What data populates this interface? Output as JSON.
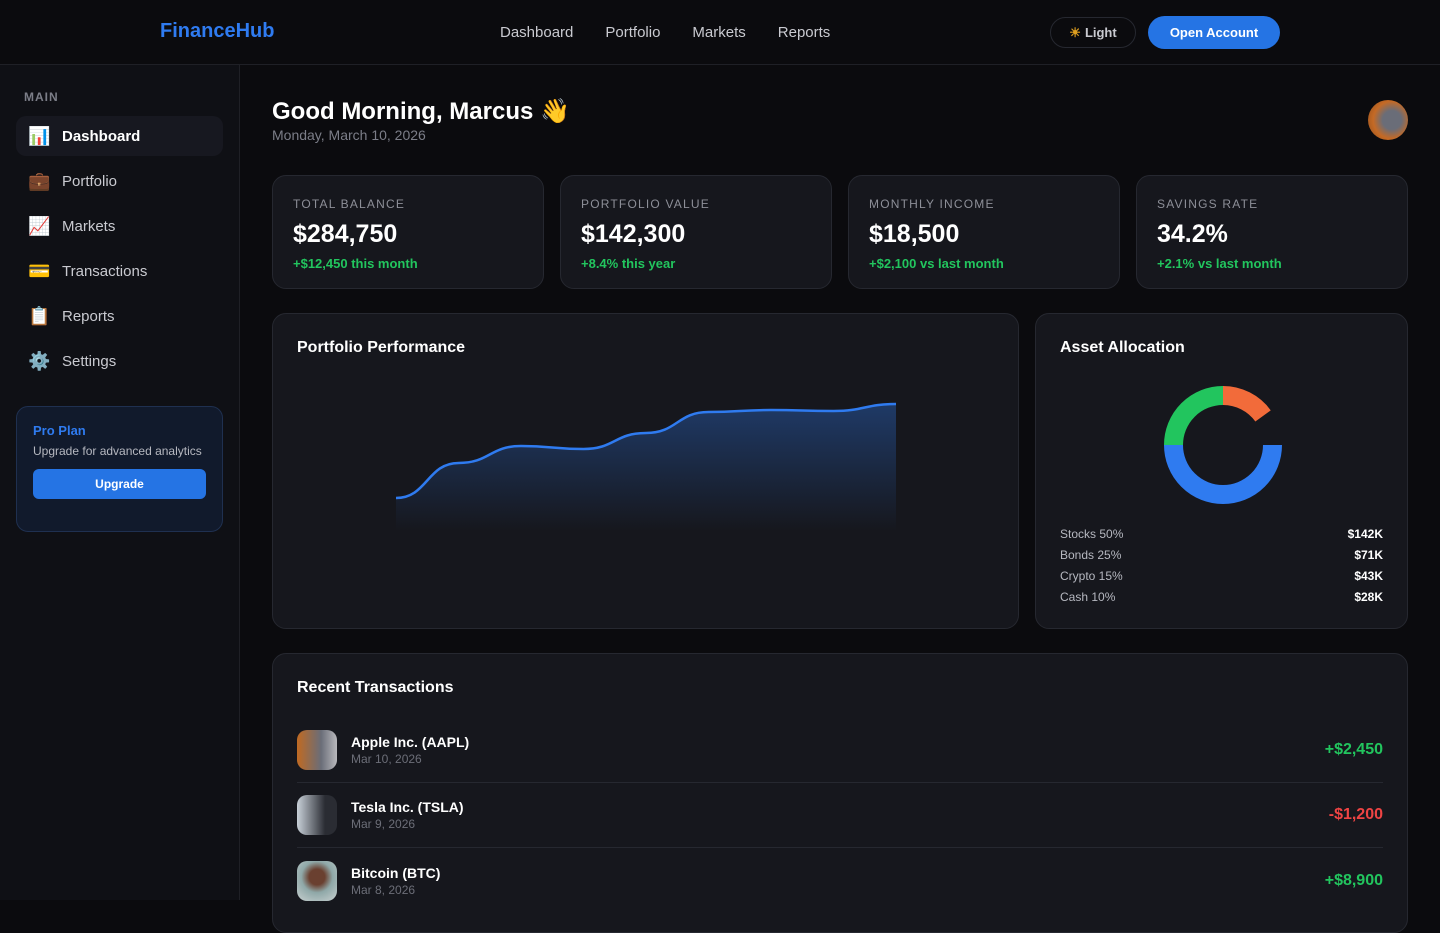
{
  "header": {
    "logo": "FinanceHub",
    "nav": [
      "Dashboard",
      "Portfolio",
      "Markets",
      "Reports"
    ],
    "theme_icon": "sun-icon",
    "theme_label": "Light",
    "open_account": "Open Account"
  },
  "sidebar": {
    "section": "MAIN",
    "items": [
      {
        "icon": "📊",
        "label": "Dashboard"
      },
      {
        "icon": "💼",
        "label": "Portfolio"
      },
      {
        "icon": "📈",
        "label": "Markets"
      },
      {
        "icon": "💳",
        "label": "Transactions"
      },
      {
        "icon": "📋",
        "label": "Reports"
      },
      {
        "icon": "⚙️",
        "label": "Settings"
      }
    ],
    "pro": {
      "title": "Pro Plan",
      "desc": "Upgrade for advanced analytics",
      "button": "Upgrade"
    }
  },
  "greeting": "Good Morning, Marcus 👋",
  "date": "Monday, March 10, 2026",
  "stats": [
    {
      "label": "TOTAL BALANCE",
      "value": "$284,750",
      "change": "+$12,450 this month"
    },
    {
      "label": "PORTFOLIO VALUE",
      "value": "$142,300",
      "change": "+8.4% this year"
    },
    {
      "label": "MONTHLY INCOME",
      "value": "$18,500",
      "change": "+$2,100 vs last month"
    },
    {
      "label": "SAVINGS RATE",
      "value": "34.2%",
      "change": "+2.1% vs last month"
    }
  ],
  "performance": {
    "title": "Portfolio Performance"
  },
  "allocation": {
    "title": "Asset Allocation",
    "items": [
      {
        "label": "Stocks 50%",
        "value": "$142K"
      },
      {
        "label": "Bonds 25%",
        "value": "$71K"
      },
      {
        "label": "Crypto 15%",
        "value": "$43K"
      },
      {
        "label": "Cash 10%",
        "value": "$28K"
      }
    ]
  },
  "transactions": {
    "title": "Recent Transactions",
    "items": [
      {
        "name": "Apple Inc. (AAPL)",
        "date": "Mar 10, 2026",
        "amount": "+$2,450"
      },
      {
        "name": "Tesla Inc. (TSLA)",
        "date": "Mar 9, 2026",
        "amount": "-$1,200"
      },
      {
        "name": "Bitcoin (BTC)",
        "date": "Mar 8, 2026",
        "amount": "+$8,900"
      }
    ]
  },
  "colors": {
    "accent": "#2f7bf0",
    "positive": "#22c55e",
    "negative": "#ef4444",
    "stocks": "#2f7bf0",
    "bonds": "#22c55e",
    "crypto": "#f26b3a"
  },
  "chart_data": [
    {
      "type": "area",
      "title": "Portfolio Performance",
      "x": [
        0,
        1,
        2,
        3,
        4,
        5,
        6,
        7,
        8
      ],
      "values": [
        33,
        68,
        85,
        82,
        98,
        119,
        121,
        120,
        127
      ],
      "ylim": [
        0,
        140
      ],
      "grid": false
    },
    {
      "type": "pie",
      "title": "Asset Allocation",
      "categories": [
        "Stocks",
        "Bonds",
        "Crypto",
        "Cash"
      ],
      "values": [
        50,
        25,
        15,
        10
      ],
      "colors": [
        "#2f7bf0",
        "#22c55e",
        "#f26b3a",
        "transparent"
      ]
    }
  ]
}
